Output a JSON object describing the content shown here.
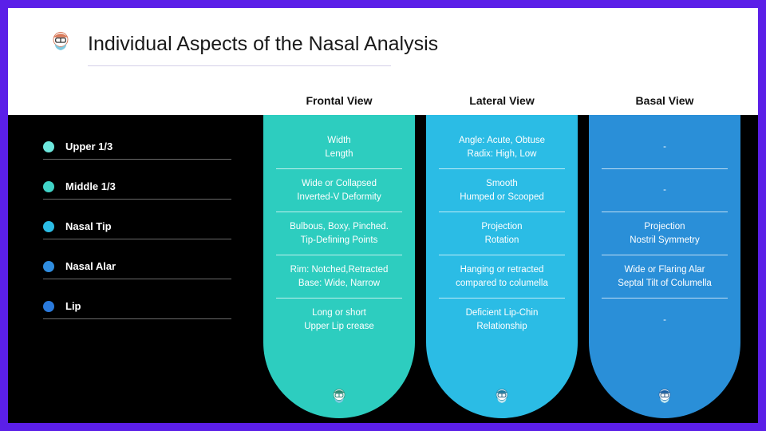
{
  "title": "Individual Aspects of the Nasal Analysis",
  "colors": {
    "frame": "#5b1fe8",
    "background": "#000000",
    "header_bg": "#ffffff",
    "col1": "#2dcdbf",
    "col2": "#2bbce5",
    "col3": "#2a8fd8",
    "bullet": [
      "#6de7dd",
      "#40d3c7",
      "#2bbce5",
      "#2f8de0",
      "#2a7adc"
    ]
  },
  "rows": [
    {
      "label": "Upper 1/3"
    },
    {
      "label": "Middle 1/3"
    },
    {
      "label": "Nasal Tip"
    },
    {
      "label": "Nasal Alar"
    },
    {
      "label": "Lip"
    }
  ],
  "columns": [
    {
      "header": "Frontal View",
      "cells": [
        "Width\nLength",
        "Wide or Collapsed\nInverted-V Deformity",
        "Bulbous, Boxy, Pinched.\nTip-Defining Points",
        "Rim: Notched,Retracted\nBase: Wide, Narrow",
        "Long or short\nUpper Lip crease"
      ]
    },
    {
      "header": "Lateral View",
      "cells": [
        "Angle: Acute, Obtuse\nRadix: High, Low",
        "Smooth\nHumped or Scooped",
        "Projection\nRotation",
        "Hanging or retracted\ncompared to columella",
        "Deficient Lip-Chin\nRelationship"
      ]
    },
    {
      "header": "Basal View",
      "cells": [
        "-",
        "-",
        "Projection\nNostril Symmetry",
        "Wide or Flaring Alar\nSeptal Tilt of Columella",
        "-"
      ]
    }
  ]
}
